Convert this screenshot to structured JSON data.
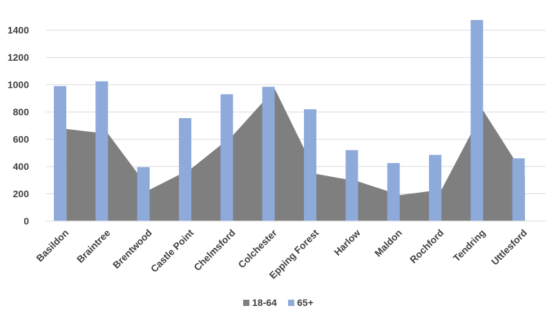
{
  "chart_data": {
    "type": "bar",
    "title": "",
    "xlabel": "",
    "ylabel": "",
    "categories": [
      "Basildon",
      "Braintree",
      "Brentwood",
      "Castle Point",
      "Chelmsford",
      "Colchester",
      "Epping Forest",
      "Harlow",
      "Maldon",
      "Rochford",
      "Tendring",
      "Uttlesford"
    ],
    "series": [
      {
        "name": "18-64",
        "type": "area",
        "color": "#7f7f7f",
        "values": [
          675,
          640,
          230,
          385,
          630,
          970,
          345,
          290,
          190,
          230,
          810,
          330
        ]
      },
      {
        "name": "65+",
        "type": "bar",
        "color": "#8eaadb",
        "values": [
          990,
          1025,
          395,
          755,
          930,
          985,
          820,
          520,
          425,
          485,
          1475,
          460
        ]
      }
    ],
    "ylim": [
      0,
      1500
    ],
    "yticks": [
      0,
      200,
      400,
      600,
      800,
      1000,
      1200,
      1400
    ],
    "grid": true,
    "legend_position": "bottom"
  }
}
